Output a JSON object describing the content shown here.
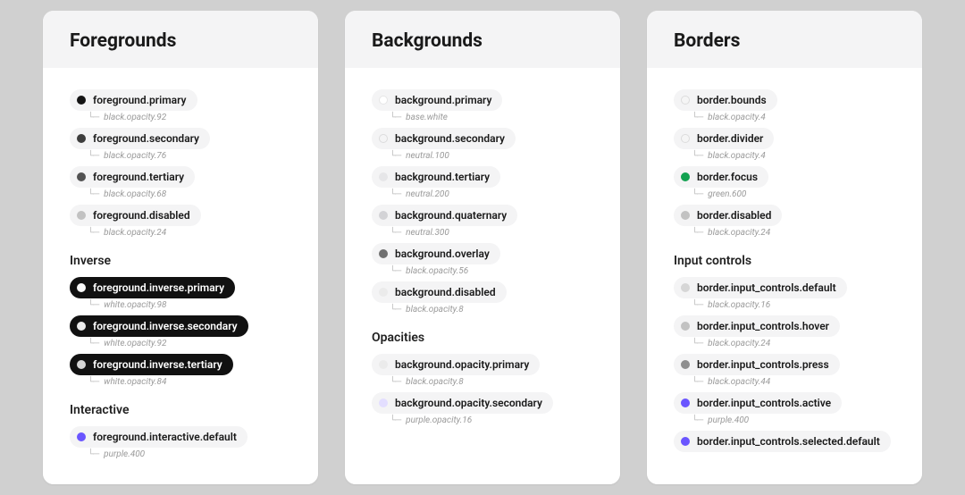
{
  "page_bg": "#d0d0d0",
  "panel_bg": "#ffffff",
  "panel_header_bg": "#f4f4f5",
  "pill_bg": "#f4f4f5",
  "pill_inverse_bg": "#111111",
  "pill_inverse_text": "#ffffff",
  "ref_arrow": "└─",
  "columns": [
    {
      "title": "Foregrounds",
      "sections": [
        {
          "heading": null,
          "tokens": [
            {
              "name": "foreground.primary",
              "ref": "black.opacity.92",
              "swatch": "#141414",
              "inverse": false
            },
            {
              "name": "foreground.secondary",
              "ref": "black.opacity.76",
              "swatch": "#3d3d3d",
              "inverse": false
            },
            {
              "name": "foreground.tertiary",
              "ref": "black.opacity.68",
              "swatch": "#525252",
              "inverse": false
            },
            {
              "name": "foreground.disabled",
              "ref": "black.opacity.24",
              "swatch": "#c2c2c2",
              "inverse": false
            }
          ]
        },
        {
          "heading": "Inverse",
          "tokens": [
            {
              "name": "foreground.inverse.primary",
              "ref": "white.opacity.98",
              "swatch": "#fafafa",
              "inverse": true
            },
            {
              "name": "foreground.inverse.secondary",
              "ref": "white.opacity.92",
              "swatch": "#ebebeb",
              "inverse": true
            },
            {
              "name": "foreground.inverse.tertiary",
              "ref": "white.opacity.84",
              "swatch": "#d6d6d6",
              "inverse": true
            }
          ]
        },
        {
          "heading": "Interactive",
          "tokens": [
            {
              "name": "foreground.interactive.default",
              "ref": "purple.400",
              "swatch": "#6a55ff",
              "inverse": false
            }
          ]
        }
      ]
    },
    {
      "title": "Backgrounds",
      "sections": [
        {
          "heading": null,
          "tokens": [
            {
              "name": "background.primary",
              "ref": "base.white",
              "swatch": "#ffffff",
              "inverse": false,
              "outline": true
            },
            {
              "name": "background.secondary",
              "ref": "neutral.100",
              "swatch": "#f4f4f5",
              "inverse": false,
              "outline": true
            },
            {
              "name": "background.tertiary",
              "ref": "neutral.200",
              "swatch": "#e6e6e8",
              "inverse": false
            },
            {
              "name": "background.quaternary",
              "ref": "neutral.300",
              "swatch": "#d3d3d6",
              "inverse": false
            },
            {
              "name": "background.overlay",
              "ref": "black.opacity.56",
              "swatch": "#707070",
              "inverse": false
            },
            {
              "name": "background.disabled",
              "ref": "black.opacity.8",
              "swatch": "#ebebeb",
              "inverse": false
            }
          ]
        },
        {
          "heading": "Opacities",
          "tokens": [
            {
              "name": "background.opacity.primary",
              "ref": "black.opacity.8",
              "swatch": "#ebebeb",
              "inverse": false
            },
            {
              "name": "background.opacity.secondary",
              "ref": "purple.opacity.16",
              "swatch": "#e3deff",
              "inverse": false
            }
          ]
        }
      ]
    },
    {
      "title": "Borders",
      "sections": [
        {
          "heading": null,
          "tokens": [
            {
              "name": "border.bounds",
              "ref": "black.opacity.4",
              "swatch": "#f5f5f5",
              "inverse": false,
              "outline": true
            },
            {
              "name": "border.divider",
              "ref": "black.opacity.4",
              "swatch": "#f5f5f5",
              "inverse": false,
              "outline": true
            },
            {
              "name": "border.focus",
              "ref": "green.600",
              "swatch": "#12a150",
              "inverse": false
            },
            {
              "name": "border.disabled",
              "ref": "black.opacity.24",
              "swatch": "#c2c2c2",
              "inverse": false
            }
          ]
        },
        {
          "heading": "Input controls",
          "tokens": [
            {
              "name": "border.input_controls.default",
              "ref": "black.opacity.16",
              "swatch": "#d6d6d6",
              "inverse": false
            },
            {
              "name": "border.input_controls.hover",
              "ref": "black.opacity.24",
              "swatch": "#c2c2c2",
              "inverse": false
            },
            {
              "name": "border.input_controls.press",
              "ref": "black.opacity.44",
              "swatch": "#8f8f8f",
              "inverse": false
            },
            {
              "name": "border.input_controls.active",
              "ref": "purple.400",
              "swatch": "#6a55ff",
              "inverse": false
            },
            {
              "name": "border.input_controls.selected.default",
              "ref": "",
              "swatch": "#6a55ff",
              "inverse": false
            }
          ]
        }
      ]
    }
  ]
}
